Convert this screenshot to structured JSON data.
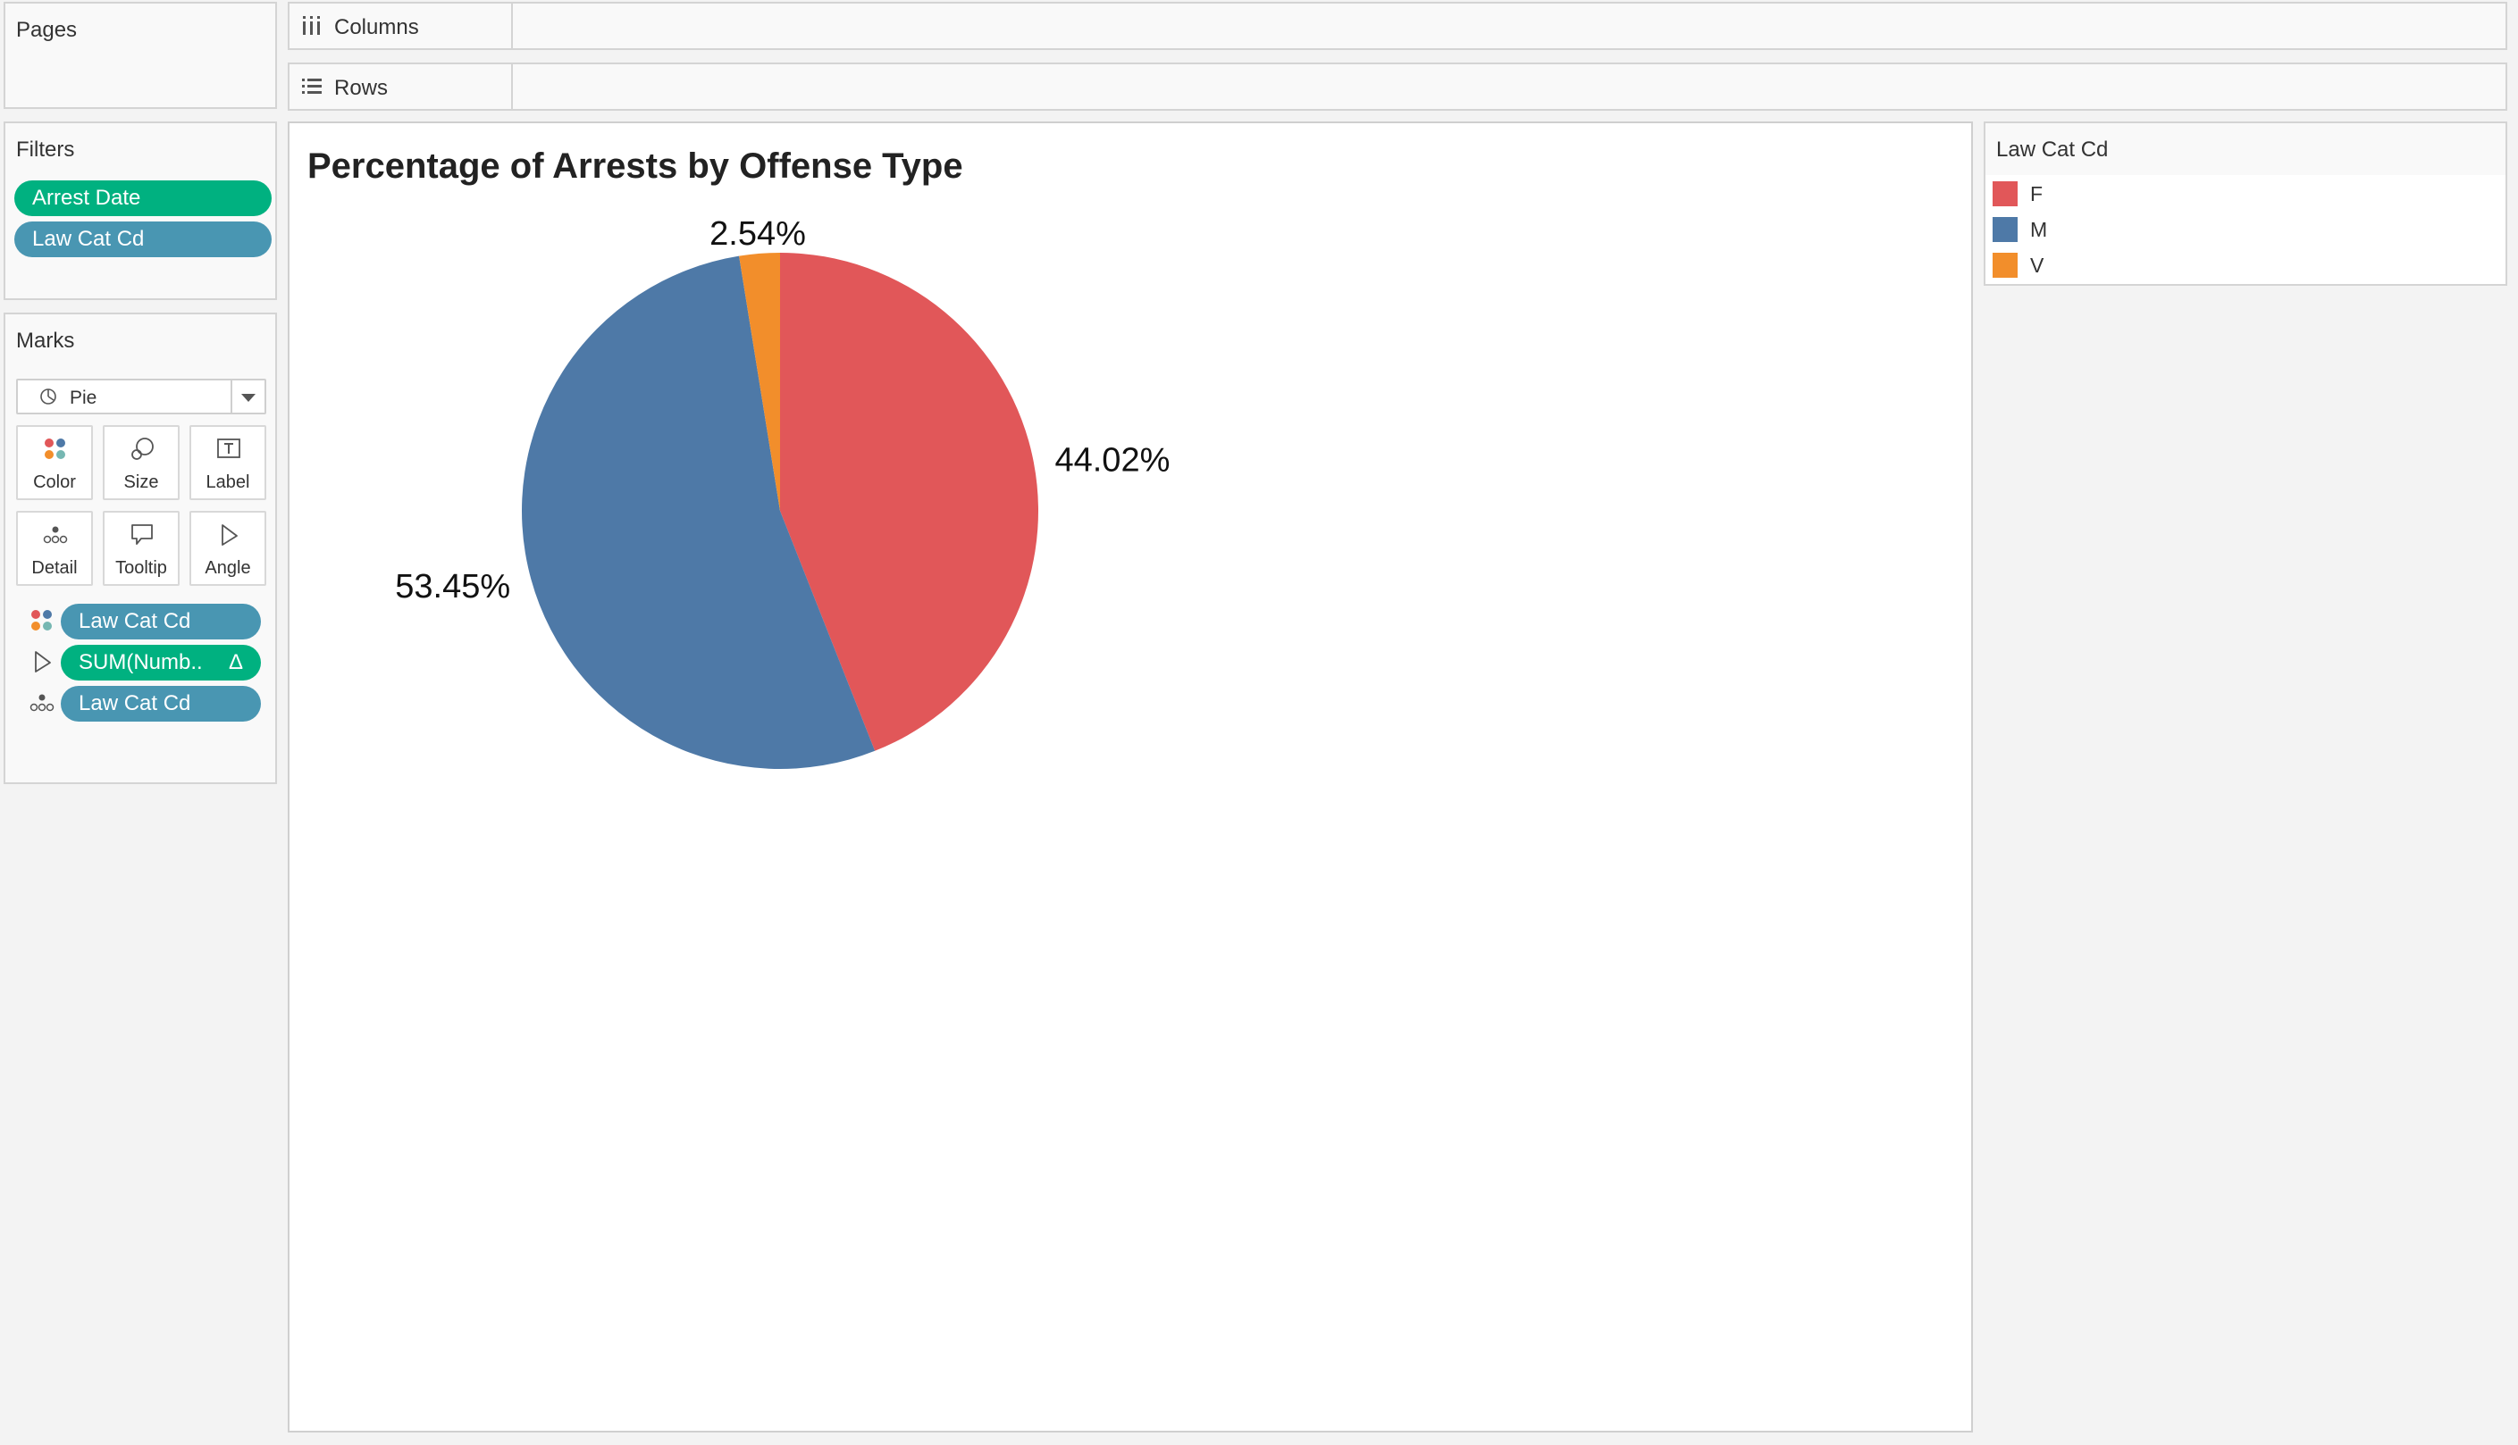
{
  "pages": {
    "title": "Pages"
  },
  "filters": {
    "title": "Filters",
    "pills": [
      {
        "label": "Arrest Date",
        "color": "green"
      },
      {
        "label": "Law Cat Cd",
        "color": "blue"
      }
    ]
  },
  "marks": {
    "title": "Marks",
    "mark_type": "Pie",
    "buttons": [
      {
        "label": "Color",
        "icon": "color-dots-icon"
      },
      {
        "label": "Size",
        "icon": "size-circles-icon"
      },
      {
        "label": "Label",
        "icon": "text-label-icon"
      },
      {
        "label": "Detail",
        "icon": "detail-dots-icon"
      },
      {
        "label": "Tooltip",
        "icon": "tooltip-bubble-icon"
      },
      {
        "label": "Angle",
        "icon": "angle-icon"
      }
    ],
    "fields": [
      {
        "label": "Law Cat Cd",
        "icon": "color-dots-icon",
        "color": "blue"
      },
      {
        "label": "SUM(Numb..",
        "icon": "angle-icon",
        "color": "green",
        "badge": "Δ"
      },
      {
        "label": "Law Cat Cd",
        "icon": "detail-dots-icon",
        "color": "blue"
      }
    ]
  },
  "shelves": {
    "columns": "Columns",
    "rows": "Rows"
  },
  "legend": {
    "title": "Law Cat Cd",
    "items": [
      {
        "label": "F",
        "color": "#e15759"
      },
      {
        "label": "M",
        "color": "#4e79a7"
      },
      {
        "label": "V",
        "color": "#f28e2b"
      }
    ]
  },
  "chart_data": {
    "type": "pie",
    "title": "Percentage of Arrests by Offense Type",
    "categories": [
      "F",
      "M",
      "V"
    ],
    "values": [
      44.02,
      53.45,
      2.54
    ],
    "labels": [
      "44.02%",
      "53.45%",
      "2.54%"
    ],
    "colors": [
      "#e15759",
      "#4e79a7",
      "#f28e2b"
    ],
    "start": "12 o'clock",
    "direction": "clockwise"
  }
}
